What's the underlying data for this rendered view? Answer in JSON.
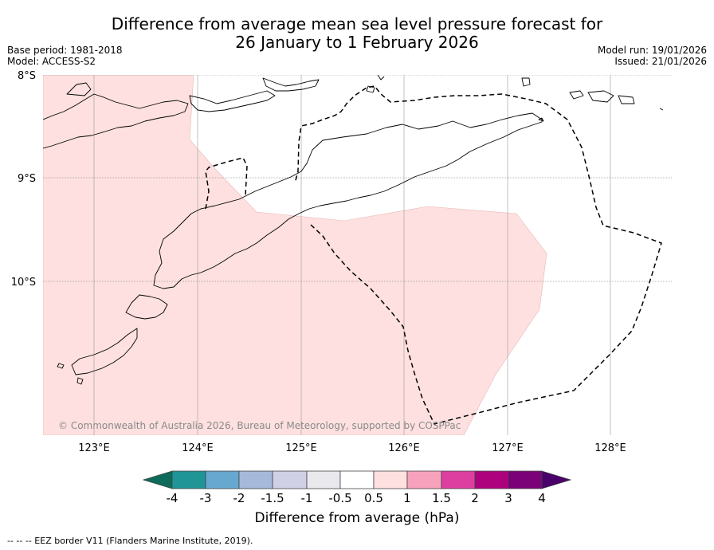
{
  "title": {
    "line1": "Difference from average mean sea level pressure forecast for",
    "line2": "26 January to 1 February 2026"
  },
  "meta": {
    "base_period": "Base period: 1981-2018",
    "model": "Model: ACCESS-S2",
    "model_run": "Model run: 19/01/2026",
    "issued": "Issued: 21/01/2026"
  },
  "map": {
    "lat_labels": [
      "8°S",
      "9°S",
      "10°S"
    ],
    "lon_labels": [
      "123°E",
      "124°E",
      "125°E",
      "126°E",
      "127°E",
      "128°E"
    ],
    "watermark": "© Commonwealth of Australia 2026, Bureau of Meteorology, supported by COSPPac",
    "anomaly_region_category": "0.5 to 1"
  },
  "colorbar": {
    "title": "Difference from average (hPa)",
    "tick_labels": [
      "-4",
      "-3",
      "-2",
      "-1.5",
      "-1",
      "-0.5",
      "0.5",
      "1",
      "1.5",
      "2",
      "3",
      "4"
    ],
    "colors": [
      "#0d6b5c",
      "#1f9598",
      "#66a8cf",
      "#a6b9db",
      "#cfd0e6",
      "#e8e8ed",
      "#ffffff",
      "#fde0df",
      "#f8a1bd",
      "#dd3fa0",
      "#ae017e",
      "#7a0177",
      "#49006a"
    ]
  },
  "footnote": "--  --  -- EEZ border V11 (Flanders Marine Institute, 2019)."
}
